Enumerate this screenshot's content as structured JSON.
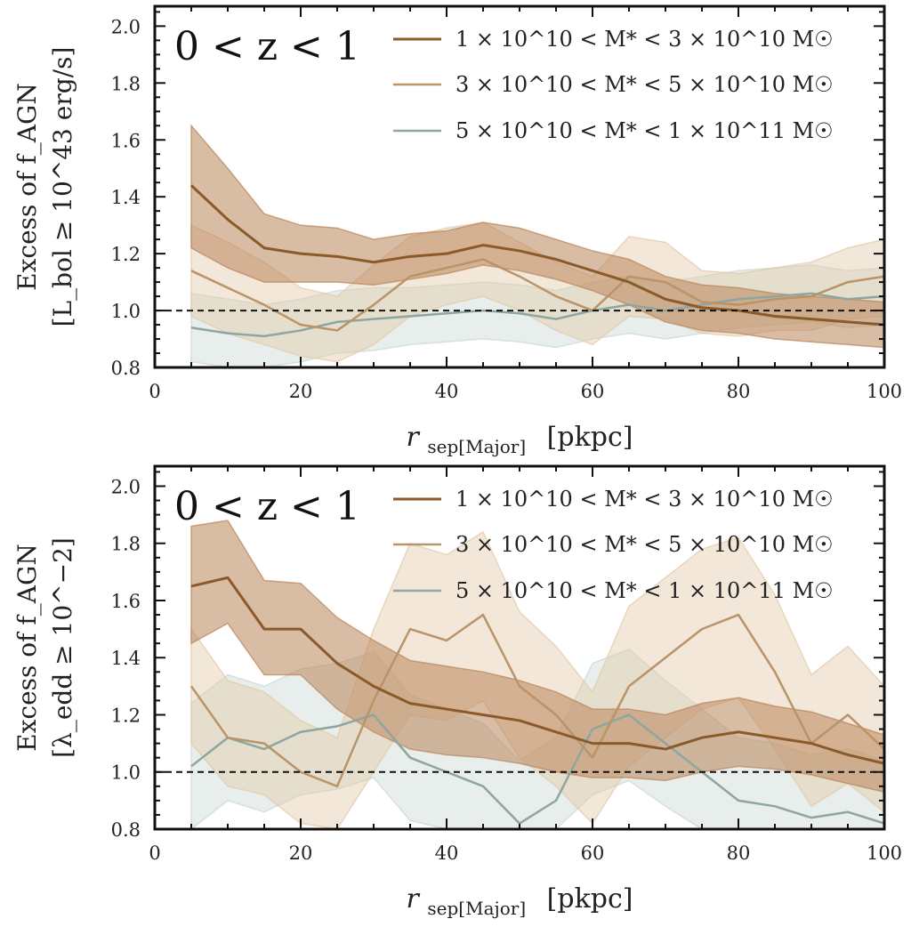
{
  "chart_data": [
    {
      "type": "line",
      "panel_label": "0 < z < 1",
      "xlabel": "r_sep[Major] [pkpc]",
      "xlabel_main": "r",
      "xlabel_sub": "sep[Major]",
      "xlabel_unit": "[pkpc]",
      "ylabel_line1": "Excess of f_AGN",
      "ylabel_line2": "[L_bol ≥ 10^43 erg/s]",
      "xlim": [
        0,
        100
      ],
      "ylim": [
        0.8,
        2.07
      ],
      "xticks": [
        0,
        20,
        40,
        60,
        80,
        100
      ],
      "yticks": [
        0.8,
        1.0,
        1.2,
        1.4,
        1.6,
        1.8,
        2.0
      ],
      "xtick_labels": [
        "0",
        "20",
        "40",
        "60",
        "80",
        "100"
      ],
      "ytick_labels": [
        "0.8",
        "1.0",
        "1.2",
        "1.4",
        "1.6",
        "1.8",
        "2.0"
      ],
      "reference_line": 1.0,
      "legend_position": "top-right",
      "x": [
        5,
        10,
        15,
        20,
        25,
        30,
        35,
        40,
        45,
        50,
        55,
        60,
        65,
        70,
        75,
        80,
        85,
        90,
        95,
        100
      ],
      "series": [
        {
          "name": "1 × 10^10 < M* < 3 × 10^10 M☉",
          "color": "#8b5a2b",
          "band_color": "#b9855a",
          "values": [
            1.44,
            1.32,
            1.22,
            1.2,
            1.19,
            1.17,
            1.19,
            1.2,
            1.23,
            1.21,
            1.18,
            1.14,
            1.1,
            1.04,
            1.01,
            1.0,
            0.98,
            0.97,
            0.96,
            0.95
          ],
          "lower": [
            1.22,
            1.15,
            1.1,
            1.1,
            1.1,
            1.09,
            1.11,
            1.13,
            1.16,
            1.14,
            1.11,
            1.07,
            1.02,
            0.96,
            0.93,
            0.92,
            0.9,
            0.89,
            0.88,
            0.87
          ],
          "upper": [
            1.65,
            1.5,
            1.34,
            1.3,
            1.29,
            1.25,
            1.27,
            1.28,
            1.31,
            1.29,
            1.25,
            1.21,
            1.18,
            1.12,
            1.09,
            1.08,
            1.06,
            1.05,
            1.04,
            1.03
          ]
        },
        {
          "name": "3 × 10^10 < M* < 5 × 10^10 M☉",
          "color": "#b89468",
          "band_color": "#e2c9a8",
          "values": [
            1.14,
            1.08,
            1.02,
            0.95,
            0.93,
            1.02,
            1.12,
            1.15,
            1.18,
            1.12,
            1.05,
            1.0,
            1.12,
            1.1,
            1.03,
            1.02,
            1.04,
            1.05,
            1.1,
            1.12
          ],
          "lower": [
            0.98,
            0.92,
            0.88,
            0.84,
            0.82,
            0.88,
            0.98,
            1.02,
            1.05,
            1.0,
            0.93,
            0.88,
            0.98,
            0.97,
            0.92,
            0.91,
            0.93,
            0.93,
            0.97,
            0.98
          ],
          "upper": [
            1.3,
            1.24,
            1.17,
            1.08,
            1.05,
            1.16,
            1.26,
            1.29,
            1.31,
            1.24,
            1.17,
            1.12,
            1.26,
            1.24,
            1.14,
            1.13,
            1.15,
            1.17,
            1.22,
            1.25
          ]
        },
        {
          "name": "5 × 10^10 < M* < 1 × 10^11 M☉",
          "color": "#8fa5a0",
          "band_color": "#c9d9d5",
          "values": [
            0.94,
            0.92,
            0.91,
            0.93,
            0.96,
            0.97,
            0.98,
            0.99,
            1.0,
            0.99,
            0.97,
            1.0,
            1.02,
            1.0,
            1.02,
            1.04,
            1.05,
            1.06,
            1.04,
            1.05
          ],
          "lower": [
            0.82,
            0.8,
            0.8,
            0.82,
            0.85,
            0.86,
            0.88,
            0.89,
            0.9,
            0.89,
            0.87,
            0.9,
            0.92,
            0.9,
            0.92,
            0.94,
            0.95,
            0.96,
            0.94,
            0.95
          ],
          "upper": [
            1.06,
            1.04,
            1.02,
            1.04,
            1.07,
            1.08,
            1.08,
            1.09,
            1.1,
            1.09,
            1.07,
            1.1,
            1.12,
            1.1,
            1.12,
            1.14,
            1.15,
            1.16,
            1.14,
            1.15
          ]
        }
      ]
    },
    {
      "type": "line",
      "panel_label": "0 < z < 1",
      "xlabel": "r_sep[Major] [pkpc]",
      "xlabel_main": "r",
      "xlabel_sub": "sep[Major]",
      "xlabel_unit": "[pkpc]",
      "ylabel_line1": "Excess of f_AGN",
      "ylabel_line2": "[λ_edd ≥ 10^−2]",
      "xlim": [
        0,
        100
      ],
      "ylim": [
        0.8,
        2.07
      ],
      "xticks": [
        0,
        20,
        40,
        60,
        80,
        100
      ],
      "yticks": [
        0.8,
        1.0,
        1.2,
        1.4,
        1.6,
        1.8,
        2.0
      ],
      "xtick_labels": [
        "0",
        "20",
        "40",
        "60",
        "80",
        "100"
      ],
      "ytick_labels": [
        "0.8",
        "1.0",
        "1.2",
        "1.4",
        "1.6",
        "1.8",
        "2.0"
      ],
      "reference_line": 1.0,
      "legend_position": "top-right",
      "x": [
        5,
        10,
        15,
        20,
        25,
        30,
        35,
        40,
        45,
        50,
        55,
        60,
        65,
        70,
        75,
        80,
        85,
        90,
        95,
        100
      ],
      "series": [
        {
          "name": "1 × 10^10 < M* < 3 × 10^10 M☉",
          "color": "#8b5a2b",
          "band_color": "#b9855a",
          "values": [
            1.65,
            1.68,
            1.5,
            1.5,
            1.38,
            1.3,
            1.24,
            1.22,
            1.2,
            1.18,
            1.14,
            1.1,
            1.1,
            1.08,
            1.12,
            1.14,
            1.12,
            1.1,
            1.06,
            1.03
          ],
          "lower": [
            1.45,
            1.52,
            1.34,
            1.34,
            1.22,
            1.14,
            1.08,
            1.06,
            1.05,
            1.03,
            1.0,
            0.98,
            0.98,
            0.97,
            1.0,
            1.02,
            1.01,
            0.99,
            0.96,
            0.93
          ],
          "upper": [
            1.86,
            1.88,
            1.67,
            1.66,
            1.54,
            1.46,
            1.39,
            1.37,
            1.35,
            1.32,
            1.28,
            1.22,
            1.22,
            1.2,
            1.24,
            1.26,
            1.23,
            1.21,
            1.17,
            1.13
          ]
        },
        {
          "name": "3 × 10^10 < M* < 5 × 10^10 M☉",
          "color": "#b89468",
          "band_color": "#e2c9a8",
          "values": [
            1.3,
            1.12,
            1.1,
            1.0,
            0.95,
            1.25,
            1.5,
            1.46,
            1.55,
            1.3,
            1.2,
            1.05,
            1.3,
            1.4,
            1.5,
            1.55,
            1.35,
            1.1,
            1.2,
            1.08
          ],
          "lower": [
            1.1,
            0.95,
            0.92,
            0.82,
            0.8,
            1.0,
            1.2,
            1.18,
            1.25,
            1.05,
            0.95,
            0.82,
            1.02,
            1.12,
            1.22,
            1.26,
            1.08,
            0.88,
            0.96,
            0.86
          ],
          "upper": [
            1.5,
            1.32,
            1.28,
            1.18,
            1.12,
            1.5,
            1.8,
            1.76,
            1.84,
            1.56,
            1.44,
            1.28,
            1.58,
            1.68,
            1.78,
            1.82,
            1.62,
            1.34,
            1.44,
            1.3
          ]
        },
        {
          "name": "5 × 10^10 < M* < 1 × 10^11 M☉",
          "color": "#8fa5a0",
          "band_color": "#c9d9d5",
          "values": [
            1.02,
            1.12,
            1.08,
            1.14,
            1.16,
            1.2,
            1.05,
            1.0,
            0.95,
            0.82,
            0.9,
            1.15,
            1.2,
            1.1,
            1.0,
            0.9,
            0.88,
            0.84,
            0.86,
            0.82
          ],
          "lower": [
            0.8,
            0.9,
            0.86,
            0.92,
            0.94,
            0.98,
            0.83,
            0.8,
            0.8,
            0.8,
            0.8,
            0.92,
            0.97,
            0.88,
            0.8,
            0.8,
            0.8,
            0.8,
            0.8,
            0.8
          ],
          "upper": [
            1.24,
            1.34,
            1.3,
            1.36,
            1.38,
            1.42,
            1.27,
            1.22,
            1.17,
            1.04,
            1.12,
            1.38,
            1.43,
            1.32,
            1.22,
            1.12,
            1.1,
            1.06,
            1.08,
            1.04
          ]
        }
      ]
    }
  ]
}
